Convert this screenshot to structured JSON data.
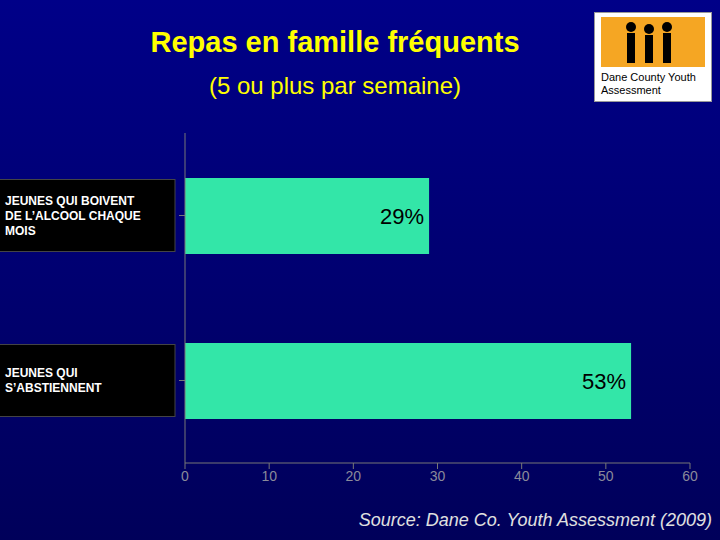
{
  "chart_data": {
    "type": "bar",
    "orientation": "horizontal",
    "title": "Repas en famille fréquents",
    "subtitle": "(5 ou plus par semaine)",
    "logo_text": "Dane County Youth Assessment",
    "source": "Source: Dane Co. Youth Assessment (2009)",
    "categories": [
      "JEUNES QUI BOIVENT DE L’ALCOOL CHAQUE MOIS",
      "JEUNES QUI S’ABSTIENNENT"
    ],
    "values": [
      29,
      53
    ],
    "value_labels": [
      "29%",
      "53%"
    ],
    "data_labels": true,
    "color": "#33e6a8",
    "xlim": [
      0,
      60
    ],
    "xticks": [
      0,
      10,
      20,
      30,
      40,
      50,
      60
    ],
    "grid": false
  }
}
